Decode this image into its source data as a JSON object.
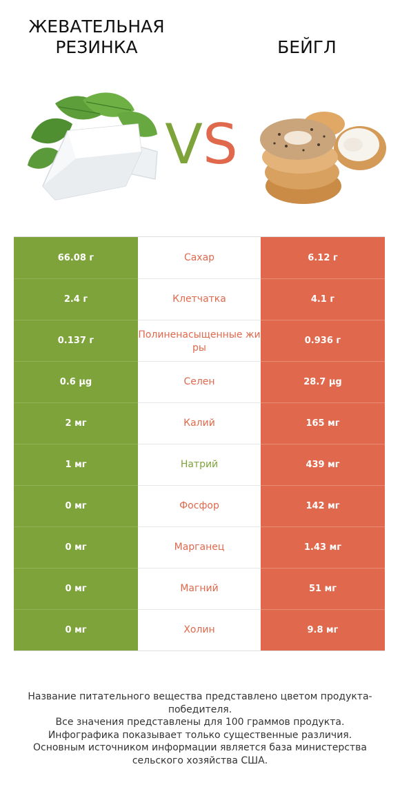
{
  "header": {
    "left_title_line1": "ЖЕВАТЕЛЬНАЯ",
    "left_title_line2": "РЕЗИНКА",
    "right_title": "БЕЙГЛ"
  },
  "vs": {
    "v": "V",
    "s": "S"
  },
  "colors": {
    "left_accent": "#7fa33b",
    "right_accent": "#e0684c"
  },
  "images": {
    "left": "chewing-gum-with-mint-leaves",
    "right": "stack-of-bagels-with-cream-cheese"
  },
  "rows": [
    {
      "nutrient": "Сахар",
      "left": "66.08 г",
      "right": "6.12 г",
      "winner": "right"
    },
    {
      "nutrient": "Клетчатка",
      "left": "2.4 г",
      "right": "4.1 г",
      "winner": "right"
    },
    {
      "nutrient": "Полиненасыщенные жиры",
      "left": "0.137 г",
      "right": "0.936 г",
      "winner": "right"
    },
    {
      "nutrient": "Селен",
      "left": "0.6 µg",
      "right": "28.7 µg",
      "winner": "right"
    },
    {
      "nutrient": "Калий",
      "left": "2 мг",
      "right": "165 мг",
      "winner": "right"
    },
    {
      "nutrient": "Натрий",
      "left": "1 мг",
      "right": "439 мг",
      "winner": "left"
    },
    {
      "nutrient": "Фосфор",
      "left": "0 мг",
      "right": "142 мг",
      "winner": "right"
    },
    {
      "nutrient": "Марганец",
      "left": "0 мг",
      "right": "1.43 мг",
      "winner": "right"
    },
    {
      "nutrient": "Магний",
      "left": "0 мг",
      "right": "51 мг",
      "winner": "right"
    },
    {
      "nutrient": "Холин",
      "left": "0 мг",
      "right": "9.8 мг",
      "winner": "right"
    }
  ],
  "footer": {
    "line1": "Название питательного вещества представлено цветом продукта-победителя.",
    "line2": "Все значения представлены для 100 граммов продукта.",
    "line3": "Инфографика показывает только существенные различия.",
    "line4": "Основным источником информации является база министерства сельского хозяйства США."
  }
}
